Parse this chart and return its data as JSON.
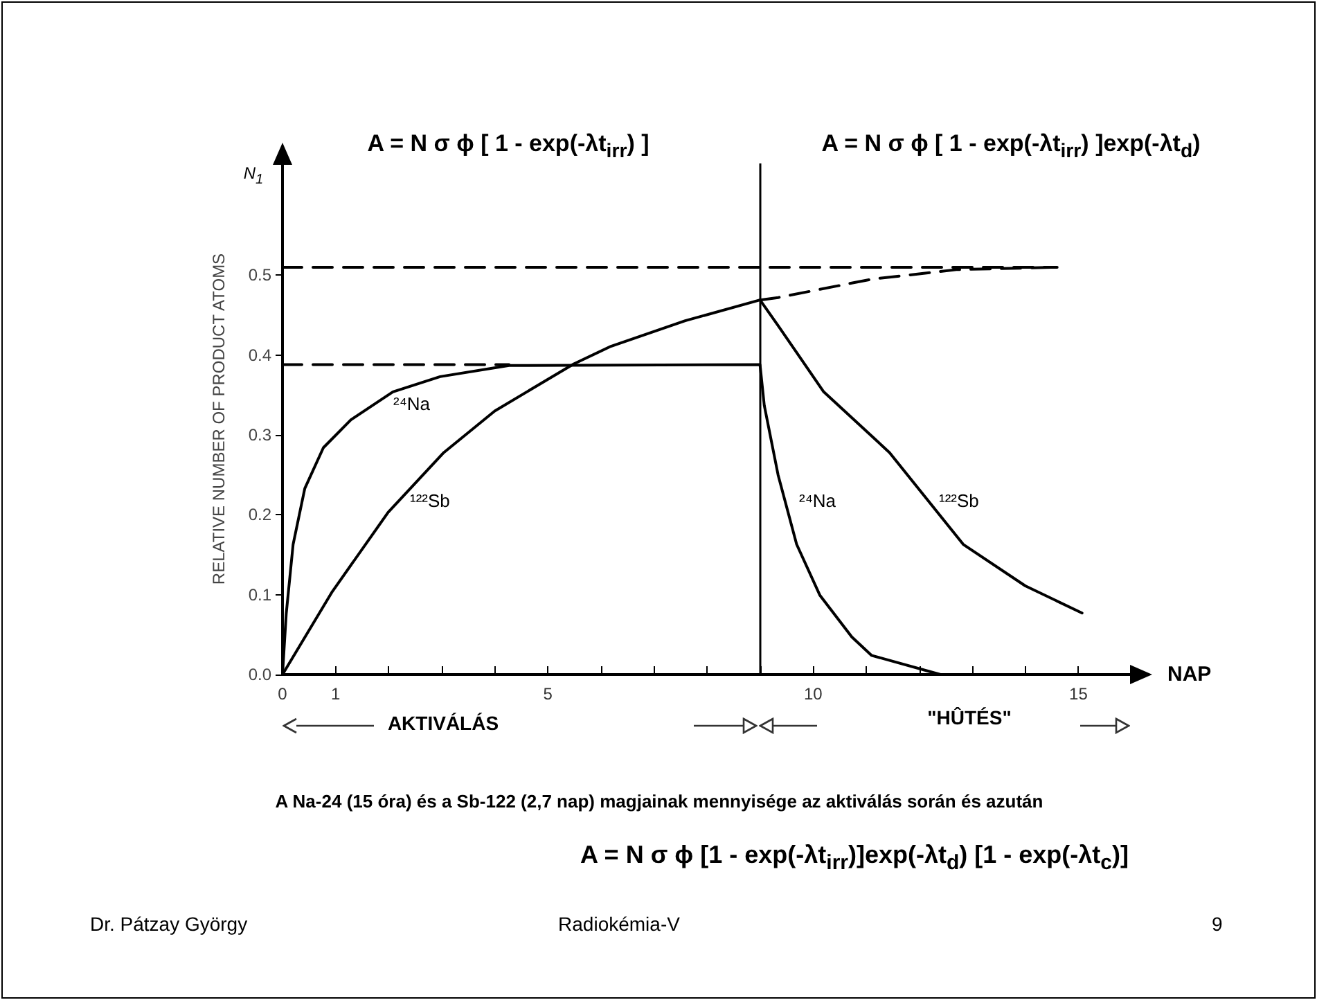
{
  "chart_data": {
    "type": "line",
    "xlabel": "NAP",
    "ylabel": "RELATIVE NUMBER OF PRODUCT ATOMS",
    "xlim": [
      0,
      16
    ],
    "xticks": [
      0,
      1,
      {
        "value": 2,
        "label": null
      },
      {
        "value": 3,
        "label": null
      },
      {
        "value": 4,
        "label": null
      },
      5,
      {
        "value": 6,
        "label": null
      },
      {
        "value": 7,
        "label": null
      },
      {
        "value": 8,
        "label": null
      },
      {
        "value": 9,
        "label": null
      },
      10,
      {
        "value": 11,
        "label": null
      },
      {
        "value": 12,
        "label": null
      },
      {
        "value": 13,
        "label": null
      },
      {
        "value": 14,
        "label": null
      },
      15
    ],
    "ylim": [
      0,
      0.64
    ],
    "yticks": [
      {
        "value": 0,
        "label": "0.0"
      },
      {
        "value": 0.1,
        "label": "0.1"
      },
      {
        "value": 0.2,
        "label": "0.2"
      },
      {
        "value": 0.3,
        "label": "0.3"
      },
      {
        "value": 0.4,
        "label": "0.4"
      },
      {
        "value": 0.5,
        "label": "0.5"
      }
    ],
    "grid": false,
    "marker": "none",
    "series": [
      {
        "color": "#000000",
        "line_style": "solid",
        "x": [
          0,
          0.07,
          0.2,
          0.42,
          0.77,
          1.29,
          2.08,
          2.97,
          4.27,
          9,
          9.08,
          9.34,
          9.69,
          10.13,
          10.73,
          11.1,
          12.4
        ],
        "values": [
          0,
          0.076,
          0.163,
          0.233,
          0.284,
          0.319,
          0.354,
          0.373,
          0.387,
          0.388,
          0.337,
          0.25,
          0.163,
          0.099,
          0.047,
          0.024,
          0
        ]
      },
      {
        "color": "#000000",
        "line_style": "solid",
        "x": [
          0,
          0.94,
          1.99,
          3.04,
          4.0,
          5.49,
          6.19,
          7.59,
          9,
          9.34,
          10.2,
          11.44,
          12.83,
          14.0,
          15.07
        ],
        "values": [
          0,
          0.104,
          0.203,
          0.278,
          0.33,
          0.389,
          0.411,
          0.443,
          0.469,
          0.437,
          0.354,
          0.278,
          0.163,
          0.111,
          0.077
        ]
      },
      {
        "color": "#000000",
        "line_style": "dashed",
        "x": [
          9,
          9.34,
          11.1,
          12.7,
          14.6
        ],
        "values": [
          0.469,
          0.472,
          0.495,
          0.507,
          0.51
        ]
      },
      {
        "color": "#000000",
        "line_style": "dashed",
        "x": [
          0,
          14.6
        ],
        "values": [
          0.51,
          0.51
        ]
      },
      {
        "color": "#000000",
        "line_style": "dashed",
        "x": [
          0,
          4.27
        ],
        "values": [
          0.388,
          0.388
        ]
      }
    ],
    "ref_lines": [
      {
        "axis": "x",
        "value": 9,
        "label": null,
        "color": "#000000",
        "line_style": "solid"
      }
    ],
    "annotations": [
      "A = N σ ϕ [ 1 - exp(-λt$_{irr}$) ]",
      "A = N σ ϕ [ 1 - exp(-λt$_{irr}$) ]exp(-λt$_{d}$)",
      "N$_{1}$",
      "AKTIVÁLÁS",
      "\"HÛTÉS\"",
      "A Na-24 (15 óra) és a Sb-122 (2,7 nap) magjainak mennyisége az aktiválás során és azután",
      "A = N σ ϕ [1 - exp(-λt$_{irr}$)]exp(-λt$_{d}$)  [1 - exp(-λt$_{c}$)]",
      "Dr. Pátzay György",
      "Radiokémia-V",
      "9",
      "²⁴Na",
      "¹²²Sb",
      "²⁴Na",
      "¹²²Sb"
    ]
  }
}
